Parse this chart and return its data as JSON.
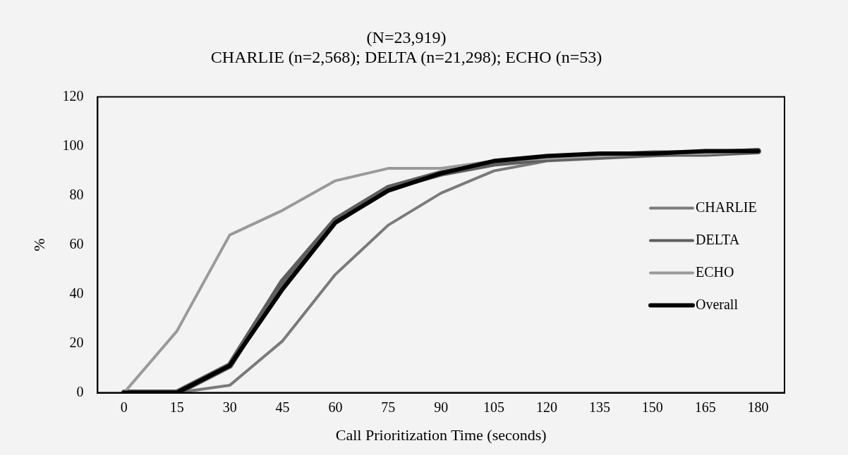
{
  "chart_data": {
    "type": "line",
    "title": "(N=23,919)",
    "subtitle": "CHARLIE (n=2,568); DELTA (n=21,298); ECHO (n=53)",
    "xlabel": "Call Prioritization Time (seconds)",
    "ylabel": "%",
    "categories": [
      "0",
      "15",
      "30",
      "45",
      "60",
      "75",
      "90",
      "105",
      "120",
      "135",
      "150",
      "165",
      "180"
    ],
    "series": [
      {
        "name": "CHARLIE",
        "color": "#7a7a7a",
        "values": [
          0,
          0,
          3,
          21,
          48,
          68,
          81,
          90,
          94,
          95,
          96,
          97,
          98
        ]
      },
      {
        "name": "DELTA",
        "color": "#5e5e5e",
        "values": [
          0,
          0,
          11,
          45,
          70,
          83,
          89,
          93,
          95,
          96,
          97,
          97,
          98
        ]
      },
      {
        "name": "ECHO",
        "color": "#9a9a9a",
        "values": [
          0,
          25,
          64,
          74,
          86,
          91,
          91,
          94,
          95,
          96,
          97,
          97,
          98
        ]
      },
      {
        "name": "Overall",
        "color": "#000000",
        "values": [
          0,
          0,
          11,
          42,
          69,
          82,
          89,
          94,
          96,
          97,
          97,
          98,
          98
        ]
      }
    ],
    "ylim": [
      0,
      120
    ],
    "yticks": [
      0,
      20,
      40,
      60,
      80,
      100,
      120
    ],
    "grid": false,
    "legend": "right",
    "marker": "none",
    "line_style": "solid"
  }
}
